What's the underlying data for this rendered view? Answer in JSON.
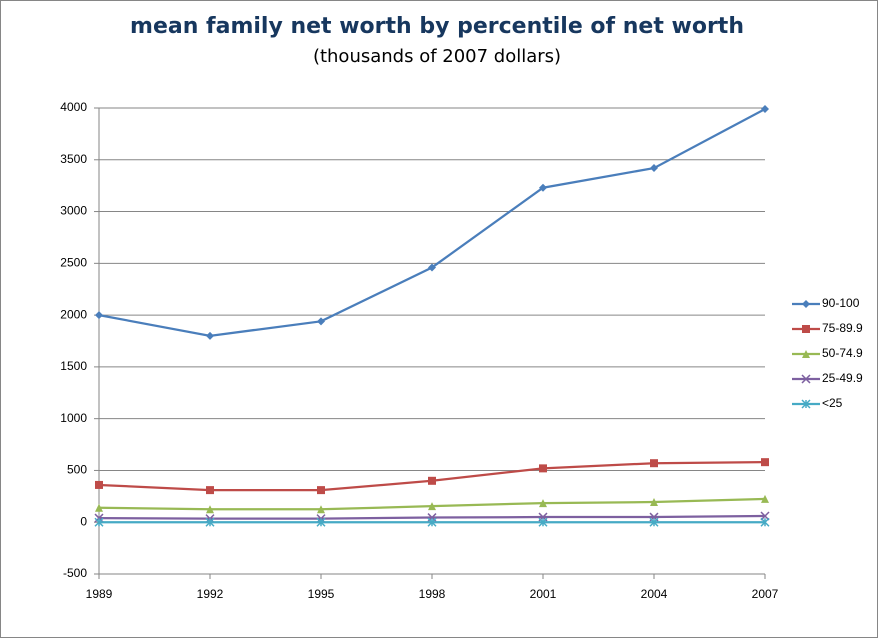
{
  "chart_data": {
    "type": "line",
    "title": "mean family net worth by percentile of net worth",
    "subtitle": "(thousands of 2007 dollars)",
    "categories": [
      "1989",
      "1992",
      "1995",
      "1998",
      "2001",
      "2004",
      "2007"
    ],
    "series": [
      {
        "name": "90-100",
        "color": "#4a7ebb",
        "marker": "diamond",
        "values": [
          2000,
          1800,
          1940,
          2460,
          3230,
          3420,
          3990
        ]
      },
      {
        "name": "75-89.9",
        "color": "#be4b48",
        "marker": "square",
        "values": [
          360,
          310,
          310,
          400,
          520,
          570,
          580
        ]
      },
      {
        "name": "50-74.9",
        "color": "#98b954",
        "marker": "triangle",
        "values": [
          140,
          125,
          125,
          155,
          185,
          195,
          225
        ]
      },
      {
        "name": "25-49.9",
        "color": "#7d60a0",
        "marker": "x",
        "values": [
          40,
          35,
          35,
          45,
          50,
          50,
          60
        ]
      },
      {
        "name": "<25",
        "color": "#46aac5",
        "marker": "asterisk",
        "values": [
          0,
          0,
          0,
          0,
          0,
          0,
          0
        ]
      }
    ],
    "ylim": [
      -500,
      4000
    ],
    "yticks": [
      -500,
      0,
      500,
      1000,
      1500,
      2000,
      2500,
      3000,
      3500,
      4000
    ],
    "grid": true,
    "legend": "right"
  }
}
